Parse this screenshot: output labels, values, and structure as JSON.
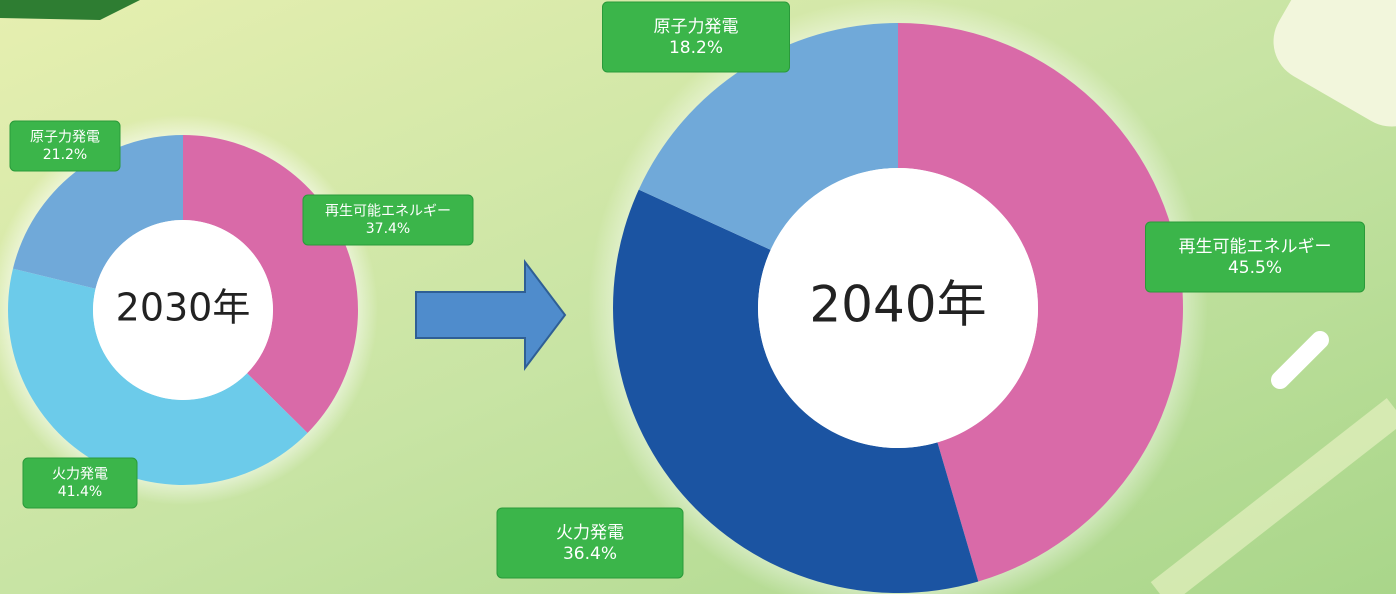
{
  "chart_data": [
    {
      "type": "donut",
      "title": "2030年",
      "categories": [
        "再生可能エネルギー",
        "火力発電",
        "原子力発電"
      ],
      "values": [
        37.4,
        41.4,
        21.2
      ],
      "value_labels": [
        "37.4%",
        "41.4%",
        "21.2%"
      ],
      "colors": [
        "#d96aa8",
        "#6ccbea",
        "#70a9d9"
      ]
    },
    {
      "type": "donut",
      "title": "2040年",
      "categories": [
        "再生可能エネルギー",
        "火力発電",
        "原子力発電"
      ],
      "values": [
        45.5,
        36.4,
        18.2
      ],
      "value_labels": [
        "45.5%",
        "36.4%",
        "18.2%"
      ],
      "colors": [
        "#d96aa8",
        "#1b54a2",
        "#70a9d9"
      ]
    }
  ]
}
